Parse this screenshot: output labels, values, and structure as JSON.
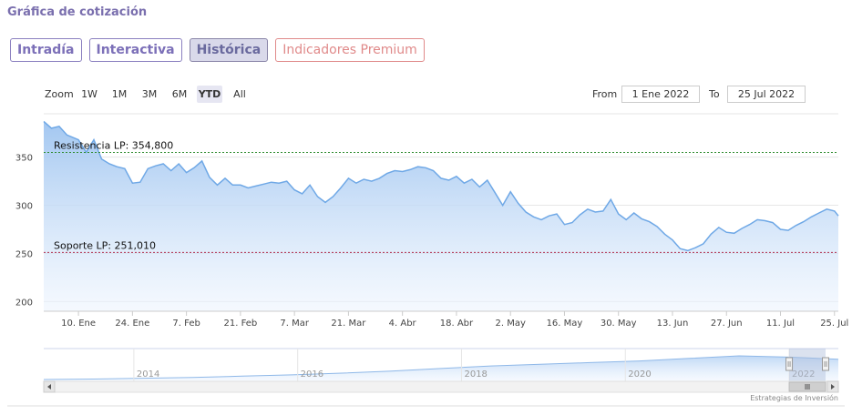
{
  "header": {
    "title": "Gráfica de cotización"
  },
  "tabs": [
    {
      "label": "Intradía",
      "active": false
    },
    {
      "label": "Interactiva",
      "active": false
    },
    {
      "label": "Histórica",
      "active": true
    },
    {
      "label": "Indicadores Premium",
      "active": false
    }
  ],
  "zoom": {
    "label": "Zoom",
    "buttons": [
      {
        "label": "1W",
        "active": false
      },
      {
        "label": "1M",
        "active": false
      },
      {
        "label": "3M",
        "active": false
      },
      {
        "label": "6M",
        "active": false
      },
      {
        "label": "YTD",
        "active": true
      },
      {
        "label": "All",
        "active": false
      }
    ]
  },
  "range": {
    "from_label": "From",
    "from_value": "1 Ene 2022",
    "to_label": "To",
    "to_value": "25 Jul 2022"
  },
  "credits": "Estrategias de Inversión",
  "colors": {
    "line": "#6fa8e6",
    "area_top": "#a7c9f2",
    "resistance": "#2e8b2e",
    "support": "#b03050",
    "accent": "#7c70b8"
  },
  "chart_data": {
    "type": "area",
    "grid": true,
    "y_ticks": [
      200,
      250,
      300,
      350
    ],
    "ylim": [
      190,
      395
    ],
    "x_ticks": [
      "10. Ene",
      "24. Ene",
      "7. Feb",
      "21. Feb",
      "7. Mar",
      "21. Mar",
      "4. Abr",
      "18. Abr",
      "2. May",
      "16. May",
      "30. May",
      "13. Jun",
      "27. Jun",
      "11. Jul",
      "25. Jul"
    ],
    "x_tick_days": [
      9,
      23,
      37,
      51,
      65,
      79,
      93,
      107,
      121,
      135,
      149,
      163,
      177,
      191,
      205
    ],
    "series": [
      {
        "x": [
          0,
          2,
          4,
          6,
          9,
          11,
          13,
          15,
          17,
          19,
          21,
          23,
          25,
          27,
          29,
          31,
          33,
          35,
          37,
          39,
          41,
          43,
          45,
          47,
          49,
          51,
          53,
          55,
          57,
          59,
          61,
          63,
          65,
          67,
          69,
          71,
          73,
          75,
          77,
          79,
          81,
          83,
          85,
          87,
          89,
          91,
          93,
          95,
          97,
          99,
          101,
          103,
          105,
          107,
          109,
          111,
          113,
          115,
          117,
          119,
          121,
          123,
          125,
          127,
          129,
          131,
          133,
          135,
          137,
          139,
          141,
          143,
          145,
          147,
          149,
          151,
          153,
          155,
          157,
          159,
          161,
          163,
          165,
          167,
          169,
          171,
          173,
          175,
          177,
          179,
          181,
          183,
          185,
          187,
          189,
          191,
          193,
          195,
          197,
          199,
          201,
          203,
          205,
          206
        ],
        "values": [
          387,
          380,
          382,
          373,
          368,
          355,
          368,
          348,
          343,
          340,
          338,
          323,
          324,
          338,
          341,
          343,
          336,
          343,
          334,
          339,
          346,
          329,
          321,
          328,
          321,
          321,
          318,
          320,
          322,
          324,
          323,
          325,
          316,
          312,
          321,
          309,
          303,
          309,
          318,
          328,
          323,
          327,
          325,
          328,
          333,
          336,
          335,
          337,
          340,
          339,
          336,
          328,
          326,
          330,
          323,
          327,
          319,
          326,
          313,
          300,
          314,
          302,
          293,
          288,
          285,
          289,
          291,
          280,
          282,
          290,
          296,
          293,
          294,
          306,
          291,
          285,
          292,
          286,
          283,
          278,
          270,
          264,
          255,
          253,
          256,
          260,
          270,
          277,
          272,
          271,
          276,
          280,
          285,
          284,
          282,
          275,
          274,
          279,
          283,
          288,
          292,
          296,
          294,
          289
        ]
      }
    ],
    "annotations": [
      {
        "label": "Resistencia LP: 354,800",
        "value": 354.8
      },
      {
        "label": "Soporte LP: 251,010",
        "value": 251.01
      }
    ],
    "navigator": {
      "labels": [
        "2014",
        "2016",
        "2018",
        "2020",
        "2022"
      ],
      "years": [
        2014,
        2016,
        2018,
        2020,
        2022
      ],
      "values": [
        30,
        31,
        33,
        35,
        38,
        41,
        45,
        50,
        56,
        62,
        66,
        70,
        74,
        80,
        86,
        83,
        78
      ],
      "start_year": 2012.9,
      "end_year": 2022.6
    }
  }
}
